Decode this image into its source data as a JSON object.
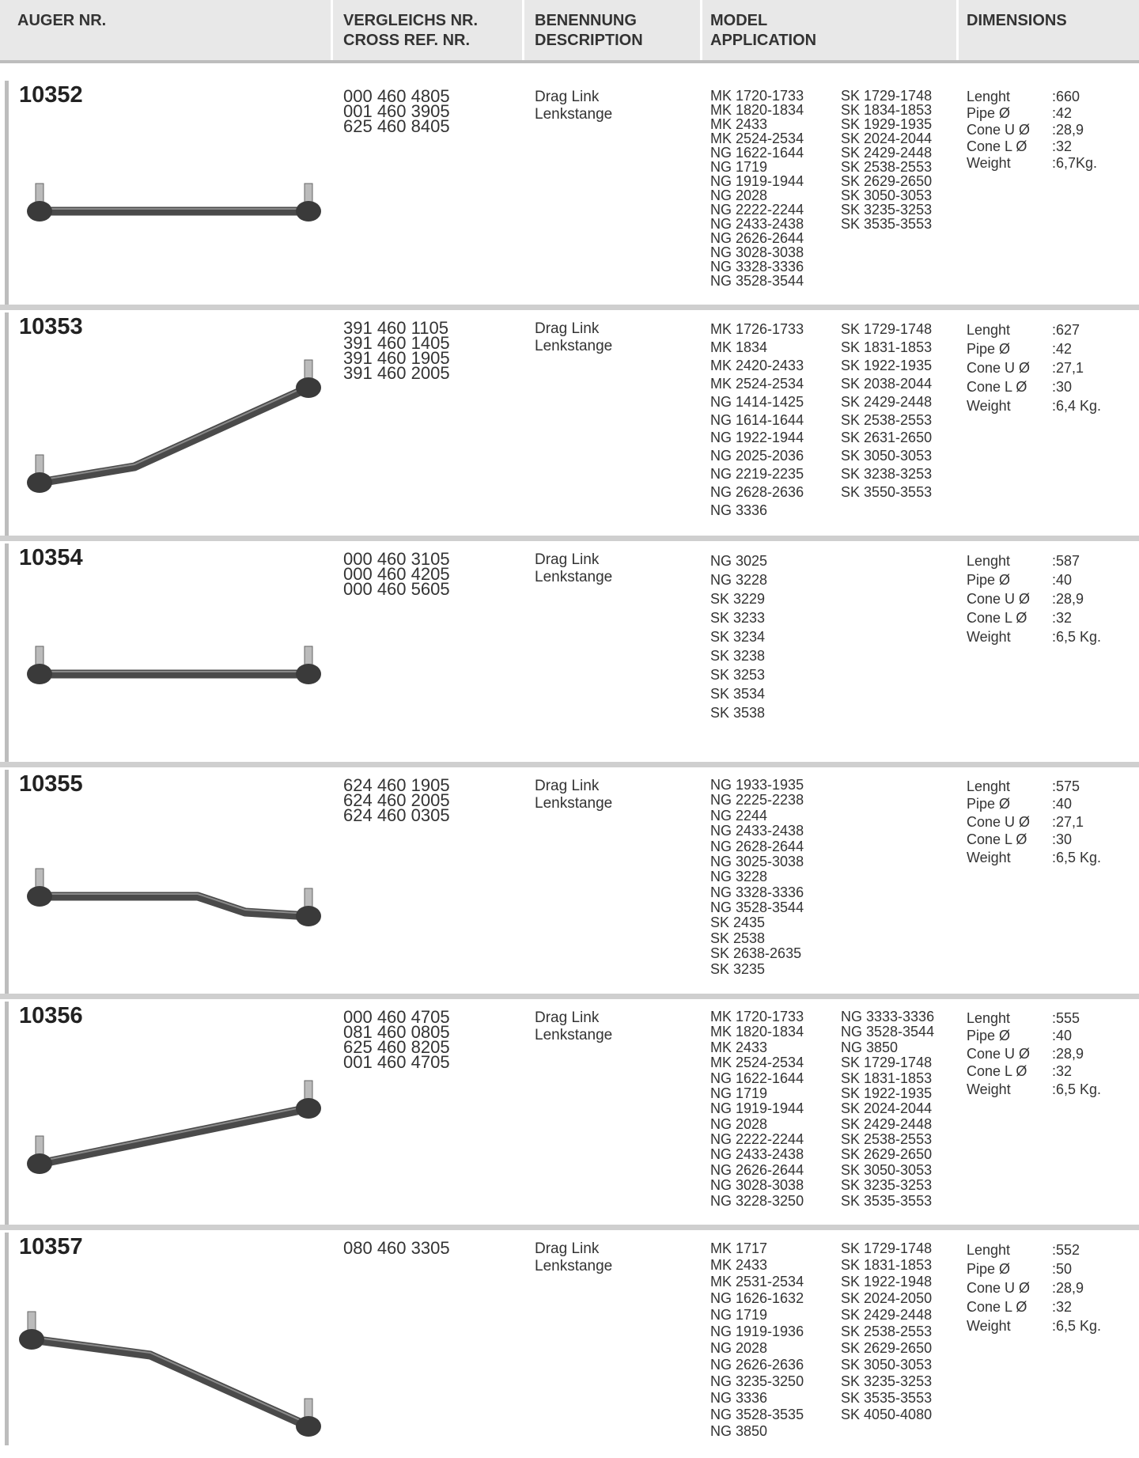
{
  "header": {
    "columns": [
      [
        "AUGER NR."
      ],
      [
        "VERGLEICHS NR.",
        "CROSS REF. NR."
      ],
      [
        "BENENNUNG",
        "DESCRIPTION"
      ],
      [
        "MODEL",
        "APPLICATION"
      ],
      [
        "DIMENSIONS"
      ]
    ]
  },
  "rows": [
    {
      "number": "10352",
      "refs": [
        "000 460 4805",
        "001 460 3905",
        "625 460 8405"
      ],
      "description": [
        "Drag Link",
        "Lenkstange"
      ],
      "models": [
        [
          "MK 1720-1733",
          "MK 1820-1834",
          "MK 2433",
          "MK 2524-2534",
          "NG 1622-1644",
          "NG 1719",
          "NG 1919-1944",
          "NG 2028",
          "NG 2222-2244",
          "NG 2433-2438",
          "NG 2626-2644",
          "NG 3028-3038",
          "NG 3328-3336",
          "NG 3528-3544"
        ],
        [
          "SK 1729-1748",
          "SK 1834-1853",
          "SK 1929-1935",
          "SK 2024-2044",
          "SK 2429-2448",
          "SK 2538-2553",
          "SK 2629-2650",
          "SK 3050-3053",
          "SK 3235-3253",
          "SK 3535-3553"
        ]
      ],
      "dimensions": [
        [
          "Lenght",
          ":660"
        ],
        [
          "Pipe Ø",
          ":42"
        ],
        [
          "Cone U Ø",
          ":28,9"
        ],
        [
          "Cone L Ø",
          ":32"
        ],
        [
          "Weight",
          ":6,7Kg."
        ]
      ]
    },
    {
      "number": "10353",
      "refs": [
        "391 460 1105",
        "391 460 1405",
        "391 460 1905",
        "391 460 2005"
      ],
      "description": [
        "Drag Link",
        "Lenkstange"
      ],
      "models": [
        [
          "MK 1726-1733",
          "MK 1834",
          "MK 2420-2433",
          "MK 2524-2534",
          "NG 1414-1425",
          "NG 1614-1644",
          "NG 1922-1944",
          "NG 2025-2036",
          "NG 2219-2235",
          "NG 2628-2636",
          "NG 3336"
        ],
        [
          "SK 1729-1748",
          "SK 1831-1853",
          "SK 1922-1935",
          "SK 2038-2044",
          "SK 2429-2448",
          "SK 2538-2553",
          "SK 2631-2650",
          "SK 3050-3053",
          "SK 3238-3253",
          "SK 3550-3553"
        ]
      ],
      "dimensions": [
        [
          "Lenght",
          ":627"
        ],
        [
          "Pipe Ø",
          ":42"
        ],
        [
          "Cone U Ø",
          ":27,1"
        ],
        [
          "Cone L Ø",
          ":30"
        ],
        [
          "Weight",
          ":6,4 Kg."
        ]
      ]
    },
    {
      "number": "10354",
      "refs": [
        "000 460 3105",
        "000 460 4205",
        "000 460 5605"
      ],
      "description": [
        "Drag Link",
        "Lenkstange"
      ],
      "models": [
        [
          "NG 3025",
          "NG 3228",
          "SK 3229",
          "SK 3233",
          "SK 3234",
          "SK 3238",
          "SK 3253",
          "SK 3534",
          "SK 3538"
        ]
      ],
      "dimensions": [
        [
          "Lenght",
          ":587"
        ],
        [
          "Pipe Ø",
          ":40"
        ],
        [
          "Cone U Ø",
          ":28,9"
        ],
        [
          "Cone L Ø",
          ":32"
        ],
        [
          "Weight",
          ":6,5 Kg."
        ]
      ]
    },
    {
      "number": "10355",
      "refs": [
        "624 460 1905",
        "624 460 2005",
        "624 460 0305"
      ],
      "description": [
        "Drag Link",
        "Lenkstange"
      ],
      "models": [
        [
          "NG 1933-1935",
          "NG 2225-2238",
          "NG 2244",
          "NG 2433-2438",
          "NG 2628-2644",
          "NG 3025-3038",
          "NG 3228",
          "NG 3328-3336",
          "NG 3528-3544",
          "SK 2435",
          "SK 2538",
          "SK 2638-2635",
          "SK 3235"
        ]
      ],
      "dimensions": [
        [
          "Lenght",
          ":575"
        ],
        [
          "Pipe Ø",
          ":40"
        ],
        [
          "Cone U Ø",
          ":27,1"
        ],
        [
          "Cone L Ø",
          ":30"
        ],
        [
          "Weight",
          ":6,5 Kg."
        ]
      ]
    },
    {
      "number": "10356",
      "refs": [
        "000 460 4705",
        "081 460 0805",
        "625 460 8205",
        "001 460 4705"
      ],
      "description": [
        "Drag Link",
        "Lenkstange"
      ],
      "models": [
        [
          "MK 1720-1733",
          "MK 1820-1834",
          "MK 2433",
          "MK 2524-2534",
          "NG 1622-1644",
          "NG 1719",
          "NG 1919-1944",
          "NG 2028",
          "NG 2222-2244",
          "NG 2433-2438",
          "NG 2626-2644",
          "NG 3028-3038",
          "NG 3228-3250"
        ],
        [
          "NG 3333-3336",
          "NG 3528-3544",
          "NG 3850",
          "SK 1729-1748",
          "SK 1831-1853",
          "SK 1922-1935",
          "SK 2024-2044",
          "SK 2429-2448",
          "SK 2538-2553",
          "SK 2629-2650",
          "SK 3050-3053",
          "SK 3235-3253",
          "SK 3535-3553"
        ]
      ],
      "dimensions": [
        [
          "Lenght",
          ":555"
        ],
        [
          "Pipe Ø",
          ":40"
        ],
        [
          "Cone U Ø",
          ":28,9"
        ],
        [
          "Cone L Ø",
          ":32"
        ],
        [
          "Weight",
          ":6,5 Kg."
        ]
      ]
    },
    {
      "number": "10357",
      "refs": [
        "080 460 3305"
      ],
      "description": [
        "Drag Link",
        "Lenkstange"
      ],
      "models": [
        [
          "MK 1717",
          "MK 2433",
          "MK 2531-2534",
          "NG 1626-1632",
          "NG 1719",
          "NG 1919-1936",
          "NG 2028",
          "NG 2626-2636",
          "NG 3235-3250",
          "NG 3336",
          "NG 3528-3535",
          "NG 3850"
        ],
        [
          "SK 1729-1748",
          "SK 1831-1853",
          "SK 1922-1948",
          "SK 2024-2050",
          "SK 2429-2448",
          "SK 2538-2553",
          "SK 2629-2650",
          "SK 3050-3053",
          "SK 3235-3253",
          "SK 3535-3553",
          "SK 4050-4080"
        ]
      ],
      "dimensions": [
        [
          "Lenght",
          ":552"
        ],
        [
          "Pipe Ø",
          ":50"
        ],
        [
          "Cone U Ø",
          ":28,9"
        ],
        [
          "Cone L Ø",
          ":32"
        ],
        [
          "Weight",
          ":6,5 Kg."
        ]
      ]
    }
  ]
}
